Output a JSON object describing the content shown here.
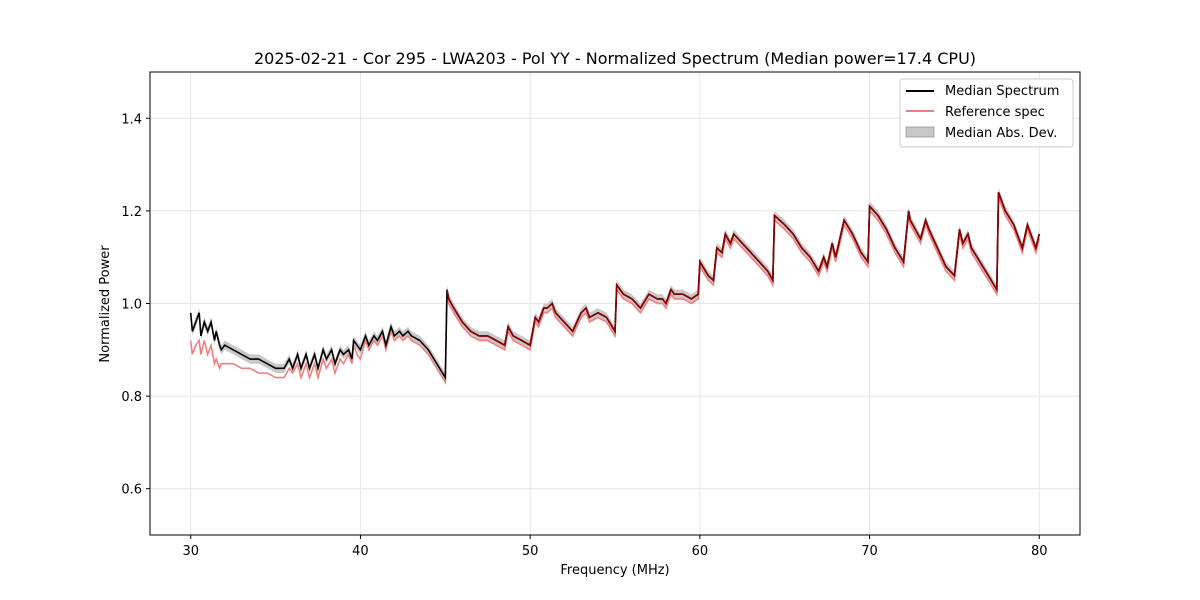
{
  "chart_data": {
    "type": "line",
    "title": "2025-02-21 - Cor 295 - LWA203 - Pol YY - Normalized Spectrum (Median power=17.4 CPU)",
    "xlabel": "Frequency (MHz)",
    "ylabel": "Normalized Power",
    "xlim": [
      27.6,
      82.4
    ],
    "ylim": [
      0.5,
      1.5
    ],
    "xticks": [
      30,
      40,
      50,
      60,
      70,
      80
    ],
    "yticks": [
      0.6,
      0.8,
      1.0,
      1.2,
      1.4
    ],
    "xtick_labels": [
      "30",
      "40",
      "50",
      "60",
      "70",
      "80"
    ],
    "ytick_labels": [
      "0.6",
      "0.8",
      "1.0",
      "1.2",
      "1.4"
    ],
    "grid": true,
    "legend_position": "top-right",
    "series": [
      {
        "name": "Median Spectrum",
        "color": "#000000",
        "x": [
          30.0,
          30.1,
          30.3,
          30.5,
          30.6,
          30.8,
          31.0,
          31.2,
          31.4,
          31.5,
          31.7,
          31.8,
          32.0,
          32.5,
          33.0,
          33.5,
          34.0,
          34.5,
          35.0,
          35.5,
          35.8,
          36.0,
          36.3,
          36.5,
          36.8,
          37.0,
          37.3,
          37.5,
          37.8,
          38.0,
          38.3,
          38.5,
          38.8,
          39.0,
          39.3,
          39.5,
          39.6,
          39.8,
          40.0,
          40.3,
          40.5,
          40.8,
          41.0,
          41.3,
          41.5,
          41.8,
          42.0,
          42.3,
          42.5,
          42.8,
          43.0,
          43.5,
          44.0,
          44.5,
          45.0,
          45.1,
          45.2,
          45.5,
          46.0,
          46.5,
          47.0,
          47.5,
          48.0,
          48.5,
          48.7,
          49.0,
          49.5,
          50.0,
          50.3,
          50.5,
          50.8,
          51.0,
          51.3,
          51.5,
          52.0,
          52.5,
          53.0,
          53.3,
          53.5,
          54.0,
          54.5,
          55.0,
          55.1,
          55.5,
          56.0,
          56.5,
          57.0,
          57.5,
          57.8,
          58.0,
          58.3,
          58.5,
          59.0,
          59.5,
          59.9,
          60.0,
          60.5,
          60.8,
          61.0,
          61.3,
          61.5,
          61.8,
          62.0,
          62.5,
          63.0,
          63.5,
          64.0,
          64.3,
          64.4,
          65.0,
          65.5,
          66.0,
          66.5,
          67.0,
          67.3,
          67.5,
          67.8,
          68.0,
          68.5,
          69.0,
          69.5,
          69.9,
          70.0,
          70.5,
          71.0,
          71.5,
          72.0,
          72.3,
          72.4,
          73.0,
          73.3,
          73.5,
          74.0,
          74.5,
          75.0,
          75.3,
          75.5,
          75.8,
          76.0,
          76.5,
          77.0,
          77.5,
          77.6,
          78.0,
          78.5,
          79.0,
          79.3,
          79.5,
          79.8,
          80.0
        ],
        "y": [
          0.98,
          0.94,
          0.96,
          0.98,
          0.93,
          0.96,
          0.94,
          0.96,
          0.92,
          0.94,
          0.91,
          0.9,
          0.91,
          0.9,
          0.89,
          0.88,
          0.88,
          0.87,
          0.86,
          0.86,
          0.88,
          0.86,
          0.89,
          0.86,
          0.89,
          0.86,
          0.89,
          0.86,
          0.9,
          0.88,
          0.9,
          0.87,
          0.9,
          0.89,
          0.9,
          0.88,
          0.92,
          0.91,
          0.9,
          0.93,
          0.91,
          0.93,
          0.92,
          0.94,
          0.91,
          0.95,
          0.93,
          0.94,
          0.93,
          0.94,
          0.93,
          0.92,
          0.9,
          0.87,
          0.84,
          1.03,
          1.01,
          0.99,
          0.96,
          0.94,
          0.93,
          0.93,
          0.92,
          0.91,
          0.95,
          0.93,
          0.92,
          0.91,
          0.97,
          0.96,
          0.99,
          0.99,
          1.0,
          0.98,
          0.96,
          0.94,
          0.98,
          0.99,
          0.97,
          0.98,
          0.97,
          0.94,
          1.04,
          1.02,
          1.01,
          0.99,
          1.02,
          1.01,
          1.01,
          1.0,
          1.03,
          1.02,
          1.02,
          1.01,
          1.02,
          1.09,
          1.06,
          1.05,
          1.12,
          1.11,
          1.15,
          1.13,
          1.15,
          1.13,
          1.11,
          1.09,
          1.07,
          1.05,
          1.19,
          1.17,
          1.15,
          1.12,
          1.1,
          1.07,
          1.1,
          1.08,
          1.13,
          1.1,
          1.18,
          1.15,
          1.11,
          1.09,
          1.21,
          1.19,
          1.16,
          1.12,
          1.09,
          1.2,
          1.18,
          1.14,
          1.18,
          1.16,
          1.12,
          1.08,
          1.06,
          1.16,
          1.13,
          1.15,
          1.12,
          1.09,
          1.06,
          1.03,
          1.24,
          1.2,
          1.17,
          1.12,
          1.17,
          1.15,
          1.12,
          1.15
        ]
      },
      {
        "name": "Reference spec",
        "color": "#f08080",
        "x": [
          30.0,
          30.1,
          30.3,
          30.5,
          30.6,
          30.8,
          31.0,
          31.2,
          31.4,
          31.5,
          31.7,
          31.8,
          32.0,
          32.5,
          33.0,
          33.5,
          34.0,
          34.5,
          35.0,
          35.5,
          35.8,
          36.0,
          36.3,
          36.5,
          36.8,
          37.0,
          37.3,
          37.5,
          37.8,
          38.0,
          38.3,
          38.5,
          38.8,
          39.0,
          39.3,
          39.5,
          39.6,
          39.8,
          40.0,
          40.3,
          40.5,
          40.8,
          41.0,
          41.3,
          41.5,
          41.8,
          42.0,
          42.3,
          42.5,
          42.8,
          43.0,
          43.5,
          44.0,
          44.5,
          45.0,
          45.1,
          45.2,
          45.5,
          46.0,
          46.5,
          47.0,
          47.5,
          48.0,
          48.5,
          48.7,
          49.0,
          49.5,
          50.0,
          50.3,
          50.5,
          50.8,
          51.0,
          51.3,
          51.5,
          52.0,
          52.5,
          53.0,
          53.3,
          53.5,
          54.0,
          54.5,
          55.0,
          55.1,
          55.5,
          56.0,
          56.5,
          57.0,
          57.5,
          57.8,
          58.0,
          58.3,
          58.5,
          59.0,
          59.5,
          59.9,
          60.0,
          60.5,
          60.8,
          61.0,
          61.3,
          61.5,
          61.8,
          62.0,
          62.5,
          63.0,
          63.5,
          64.0,
          64.3,
          64.4,
          65.0,
          65.5,
          66.0,
          66.5,
          67.0,
          67.3,
          67.5,
          67.8,
          68.0,
          68.5,
          69.0,
          69.5,
          69.9,
          70.0,
          70.5,
          71.0,
          71.5,
          72.0,
          72.3,
          72.4,
          73.0,
          73.3,
          73.5,
          74.0,
          74.5,
          75.0,
          75.3,
          75.5,
          75.8,
          76.0,
          76.5,
          77.0,
          77.5,
          77.6,
          78.0,
          78.5,
          79.0,
          79.3,
          79.5,
          79.8,
          80.0
        ],
        "y": [
          0.92,
          0.89,
          0.91,
          0.92,
          0.89,
          0.92,
          0.89,
          0.91,
          0.87,
          0.88,
          0.86,
          0.87,
          0.87,
          0.87,
          0.86,
          0.86,
          0.85,
          0.85,
          0.84,
          0.84,
          0.86,
          0.85,
          0.87,
          0.84,
          0.87,
          0.84,
          0.87,
          0.84,
          0.88,
          0.86,
          0.88,
          0.85,
          0.88,
          0.87,
          0.89,
          0.87,
          0.91,
          0.89,
          0.88,
          0.92,
          0.9,
          0.92,
          0.91,
          0.93,
          0.9,
          0.94,
          0.92,
          0.93,
          0.92,
          0.93,
          0.92,
          0.91,
          0.89,
          0.86,
          0.83,
          1.02,
          1.0,
          0.98,
          0.95,
          0.93,
          0.92,
          0.92,
          0.91,
          0.9,
          0.94,
          0.92,
          0.91,
          0.9,
          0.96,
          0.95,
          0.98,
          0.98,
          0.99,
          0.97,
          0.95,
          0.93,
          0.97,
          0.98,
          0.96,
          0.97,
          0.96,
          0.93,
          1.03,
          1.01,
          1.0,
          0.98,
          1.01,
          1.0,
          1.0,
          0.99,
          1.02,
          1.01,
          1.01,
          1.0,
          1.01,
          1.08,
          1.05,
          1.04,
          1.11,
          1.1,
          1.14,
          1.12,
          1.14,
          1.12,
          1.1,
          1.08,
          1.06,
          1.04,
          1.18,
          1.16,
          1.14,
          1.11,
          1.09,
          1.06,
          1.09,
          1.07,
          1.12,
          1.09,
          1.17,
          1.14,
          1.1,
          1.08,
          1.2,
          1.18,
          1.15,
          1.11,
          1.08,
          1.19,
          1.17,
          1.13,
          1.17,
          1.15,
          1.11,
          1.07,
          1.05,
          1.15,
          1.12,
          1.14,
          1.11,
          1.08,
          1.05,
          1.02,
          1.23,
          1.19,
          1.16,
          1.11,
          1.16,
          1.14,
          1.11,
          1.14
        ]
      }
    ],
    "band": {
      "name": "Median Abs. Dev.",
      "color": "#c8c8c8",
      "mad": 0.01
    },
    "overlap_color": "#8b0000"
  }
}
